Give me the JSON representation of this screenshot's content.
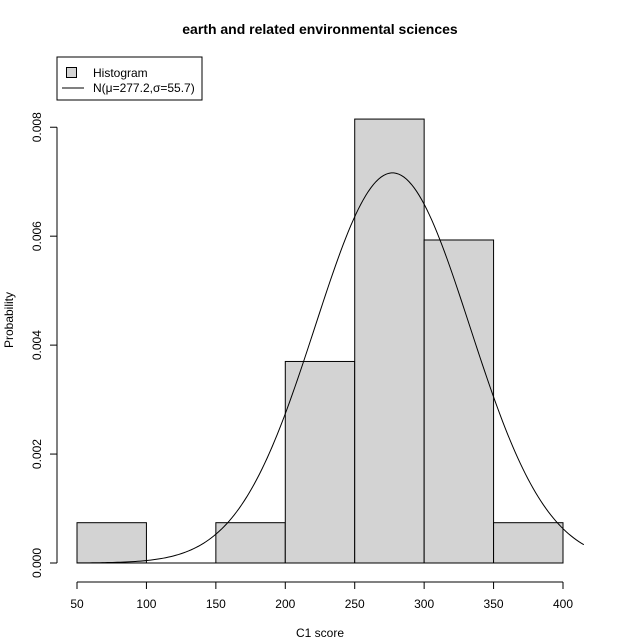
{
  "chart_data": {
    "type": "bar",
    "title": "earth and related environmental sciences",
    "xlabel": "C1 score",
    "ylabel": "Probability",
    "xlim": [
      50,
      415
    ],
    "ylim": [
      0,
      0.0085
    ],
    "x_ticks": [
      50,
      100,
      150,
      200,
      250,
      300,
      350,
      400
    ],
    "x_tick_labels": [
      "50",
      "100",
      "150",
      "200",
      "250",
      "300",
      "350",
      "400"
    ],
    "y_ticks": [
      0,
      0.002,
      0.004,
      0.006,
      0.008
    ],
    "y_tick_labels": [
      "0.000",
      "0.002",
      "0.004",
      "0.006",
      "0.008"
    ],
    "bins": [
      {
        "from": 50,
        "to": 100,
        "value": 0.00074
      },
      {
        "from": 100,
        "to": 150,
        "value": 0.0
      },
      {
        "from": 150,
        "to": 200,
        "value": 0.00074
      },
      {
        "from": 200,
        "to": 250,
        "value": 0.0037
      },
      {
        "from": 250,
        "to": 300,
        "value": 0.00815
      },
      {
        "from": 300,
        "to": 350,
        "value": 0.00593
      },
      {
        "from": 350,
        "to": 400,
        "value": 0.00074
      }
    ],
    "normal_curve": {
      "mu": 277.2,
      "sigma": 55.7
    },
    "legend": {
      "placement": "top-left",
      "entries": [
        {
          "label": "Histogram",
          "symbol": "box"
        },
        {
          "label": "N(μ=277.2,σ=55.7)",
          "symbol": "line"
        }
      ]
    },
    "grid": false,
    "colors": {
      "bar_fill": "#d3d3d3",
      "stroke": "#000000"
    }
  }
}
